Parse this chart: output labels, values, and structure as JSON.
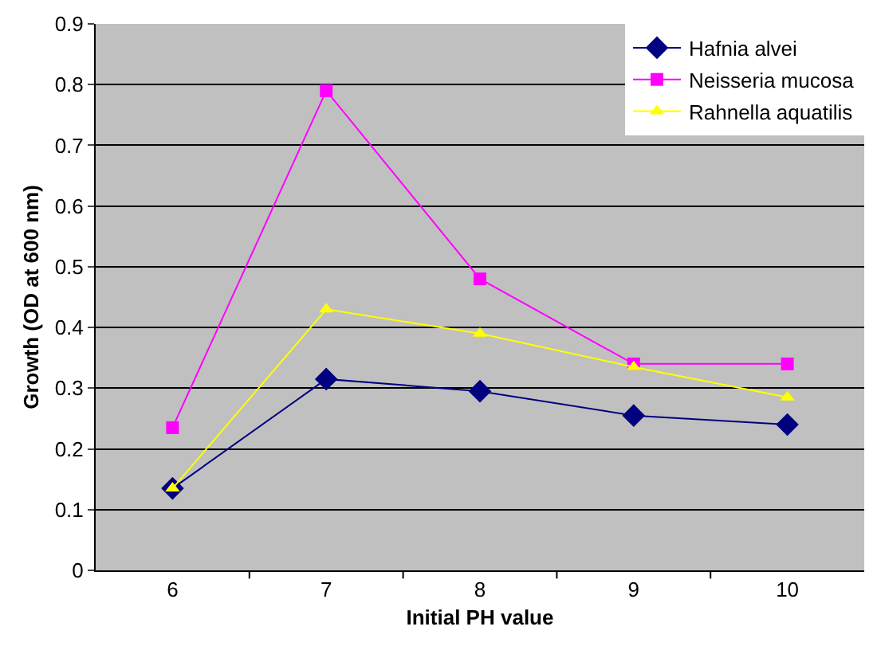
{
  "chart_data": {
    "type": "line",
    "xlabel": "Initial PH value",
    "ylabel": "Growth (OD at 600 nm)",
    "categories": [
      "6",
      "7",
      "8",
      "9",
      "10"
    ],
    "series": [
      {
        "name": "Hafnia alvei",
        "color": "#000080",
        "marker": "diamond",
        "values": [
          0.135,
          0.315,
          0.295,
          0.255,
          0.24
        ]
      },
      {
        "name": "Neisseria mucosa",
        "color": "#ff00ff",
        "marker": "square",
        "values": [
          0.235,
          0.79,
          0.48,
          0.34,
          0.34
        ]
      },
      {
        "name": "Rahnella aquatilis",
        "color": "#ffff00",
        "marker": "triangle",
        "values": [
          0.135,
          0.43,
          0.39,
          0.335,
          0.285
        ]
      }
    ],
    "ylim": [
      0,
      0.9
    ],
    "yticks": [
      0,
      0.1,
      0.2,
      0.3,
      0.4,
      0.5,
      0.6,
      0.7,
      0.8,
      0.9
    ],
    "grid": "y",
    "legend": "top right",
    "line_style": "solid"
  }
}
